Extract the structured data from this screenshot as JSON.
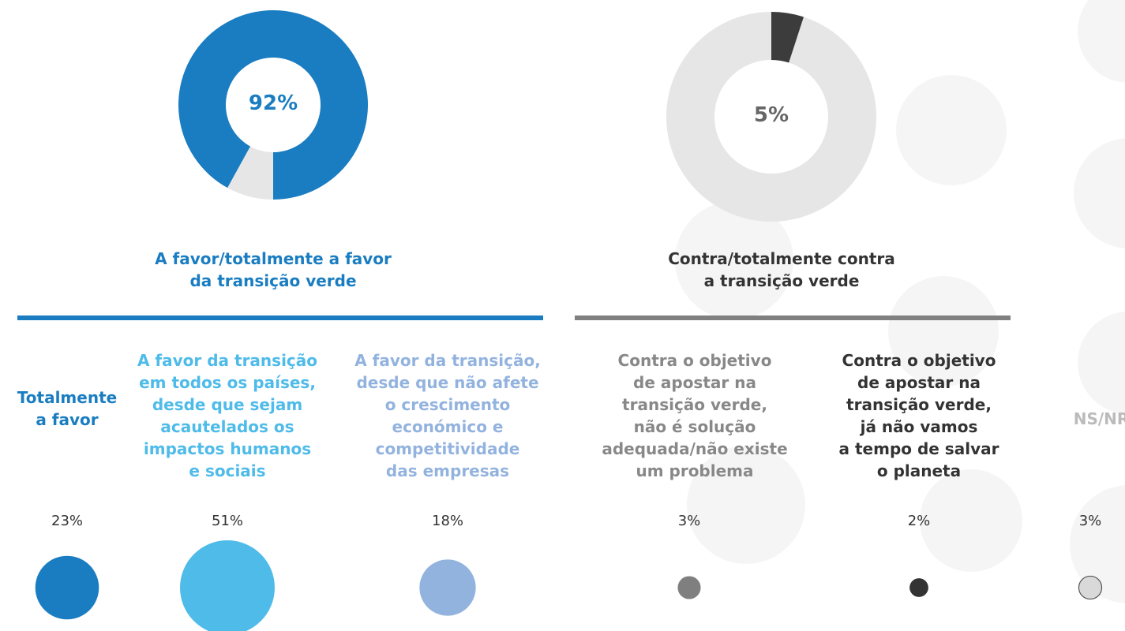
{
  "chart_data": [
    {
      "type": "pie",
      "title": "A favor/totalmente a favor\nda transição verde",
      "values": [
        92,
        8
      ],
      "value_labels": [
        "92%",
        null
      ],
      "colors": [
        "#1a7dc1",
        "#e6e6e6"
      ]
    },
    {
      "type": "pie",
      "title": "Contra/totalmente contra\na transição verde",
      "values": [
        5,
        95
      ],
      "value_labels": [
        "5%",
        null
      ],
      "colors": [
        "#3c3c3c",
        "#e6e6e6"
      ]
    },
    {
      "type": "bubble",
      "categories": [
        "Totalmente\na favor",
        "A favor da transição\nem todos os países,\ndesde que sejam\nacautelados os\nimpactos humanos\ne sociais",
        "A favor da transição,\ndesde que não afete\no crescimento\neconómico e\ncompetitividade\ndas empresas",
        "Contra o objetivo\nde apostar na\ntransição verde,\nnão é solução\nadequada/não existe\num problema",
        "Contra o objetivo\nde apostar na\ntransição verde,\njá não vamos\na tempo de salvar\no planeta",
        "NS/NR"
      ],
      "values": [
        23,
        51,
        18,
        3,
        2,
        3
      ],
      "value_labels": [
        "23%",
        "51%",
        "18%",
        "3%",
        "2%",
        "3%"
      ],
      "colors": [
        "#1a7dc1",
        "#4ebbe9",
        "#93b3df",
        "#7f7f7f",
        "#333333",
        "#d9d9d9"
      ],
      "label_colors": [
        "#1a7dc1",
        "#4ebbe9",
        "#93b3df",
        "#888888",
        "#333333",
        "#bbbbbb"
      ]
    }
  ]
}
